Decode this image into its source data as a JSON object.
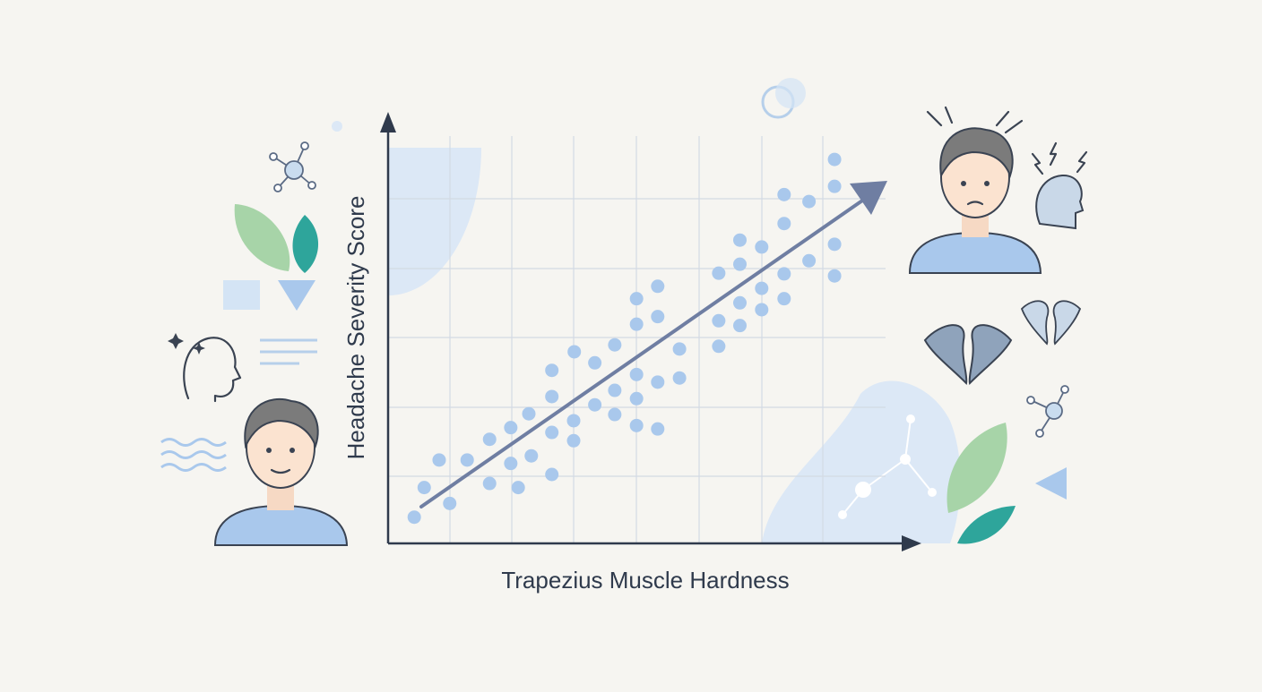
{
  "chart_data": {
    "type": "scatter",
    "x_label": "Trapezius Muscle Hardness",
    "y_label": "Headache Severity Score",
    "xlim": [
      0,
      8.45
    ],
    "ylim": [
      0,
      6
    ],
    "series": [
      {
        "color": "#a9c8ec",
        "x": [
          0.42,
          0.58,
          0.82,
          0.99,
          1.27,
          1.63,
          1.63,
          1.97,
          1.97,
          2.09,
          2.26,
          2.3,
          2.63,
          2.63,
          2.63,
          2.63,
          2.98,
          2.98,
          2.99,
          3.32,
          3.32,
          3.64,
          3.64,
          3.64,
          3.99,
          3.99,
          3.99,
          3.99,
          3.99,
          4.33,
          4.33,
          4.33,
          4.33,
          4.68,
          4.68,
          5.31,
          5.31,
          5.31,
          5.65,
          5.65,
          5.65,
          5.65,
          6.0,
          6.0,
          6.0,
          6.36,
          6.36,
          6.36,
          6.36,
          6.76,
          6.76,
          7.17,
          7.17,
          7.17,
          7.17
        ],
        "values": [
          0.38,
          0.81,
          1.21,
          0.58,
          1.21,
          1.51,
          0.87,
          1.68,
          1.16,
          0.81,
          1.88,
          1.27,
          2.51,
          2.13,
          1.61,
          1.0,
          1.78,
          1.49,
          2.78,
          2.62,
          2.01,
          2.88,
          2.22,
          1.87,
          3.55,
          3.18,
          2.45,
          2.1,
          1.71,
          3.73,
          3.29,
          2.34,
          1.66,
          2.82,
          2.4,
          3.92,
          3.23,
          2.86,
          4.4,
          4.05,
          3.49,
          3.16,
          4.3,
          3.7,
          3.39,
          5.06,
          4.64,
          3.91,
          3.55,
          4.96,
          4.1,
          5.57,
          5.18,
          4.34,
          3.88
        ]
      }
    ]
  }
}
